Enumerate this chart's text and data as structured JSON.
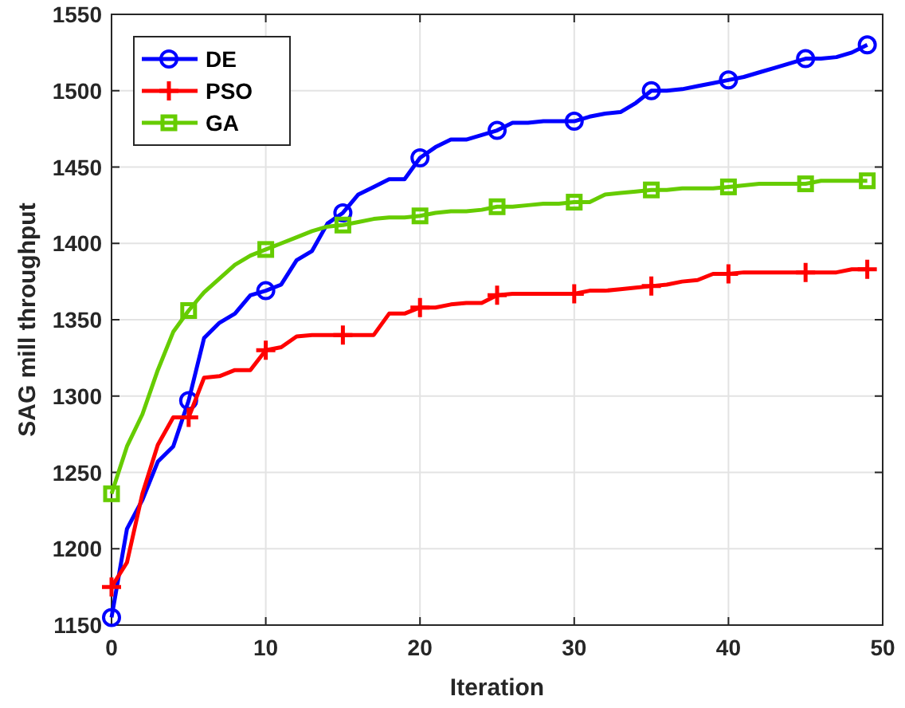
{
  "chart_data": {
    "type": "line",
    "xlabel": "Iteration",
    "ylabel": "SAG mill throughput",
    "x": [
      0,
      1,
      2,
      3,
      4,
      5,
      6,
      7,
      8,
      9,
      10,
      11,
      12,
      13,
      14,
      15,
      16,
      17,
      18,
      19,
      20,
      21,
      22,
      23,
      24,
      25,
      26,
      27,
      28,
      29,
      30,
      31,
      32,
      33,
      34,
      35,
      36,
      37,
      38,
      39,
      40,
      41,
      42,
      43,
      44,
      45,
      46,
      47,
      48,
      49
    ],
    "series": [
      {
        "name": "DE",
        "color": "#0000ff",
        "values": [
          1155,
          1213,
          1232,
          1257,
          1267,
          1297,
          1338,
          1348,
          1354,
          1366,
          1369,
          1373,
          1389,
          1395,
          1413,
          1420,
          1432,
          1437,
          1442,
          1442,
          1456,
          1463,
          1468,
          1468,
          1471,
          1474,
          1479,
          1479,
          1480,
          1480,
          1480,
          1483,
          1485,
          1486,
          1492,
          1500,
          1500,
          1501,
          1503,
          1505,
          1507,
          1509,
          1512,
          1515,
          1518,
          1521,
          1521,
          1522,
          1525,
          1530
        ]
      },
      {
        "type": "scatter",
        "color": "#0000ff",
        "marker": "circle",
        "x": [
          0,
          5,
          10,
          15,
          20,
          25,
          30,
          35,
          40,
          45,
          49
        ],
        "values": [
          1155,
          1297,
          1369,
          1420,
          1456,
          1474,
          1480,
          1500,
          1507,
          1521,
          1530
        ]
      },
      {
        "name": "PSO",
        "color": "#ff0000",
        "values": [
          1175,
          1191,
          1236,
          1268,
          1286,
          1286,
          1312,
          1313,
          1317,
          1317,
          1330,
          1332,
          1339,
          1340,
          1340,
          1340,
          1340,
          1340,
          1354,
          1354,
          1358,
          1358,
          1360,
          1361,
          1361,
          1366,
          1367,
          1367,
          1367,
          1367,
          1367,
          1369,
          1369,
          1370,
          1371,
          1372,
          1373,
          1375,
          1376,
          1380,
          1380,
          1381,
          1381,
          1381,
          1381,
          1381,
          1381,
          1381,
          1383,
          1383
        ]
      },
      {
        "type": "scatter",
        "color": "#ff0000",
        "marker": "cross",
        "x": [
          0,
          5,
          10,
          15,
          20,
          25,
          30,
          35,
          40,
          45,
          49
        ],
        "values": [
          1175,
          1286,
          1330,
          1340,
          1358,
          1366,
          1367,
          1372,
          1380,
          1381,
          1383
        ]
      },
      {
        "name": "GA",
        "color": "#66cc00",
        "values": [
          1236,
          1267,
          1288,
          1317,
          1342,
          1356,
          1368,
          1377,
          1386,
          1392,
          1396,
          1400,
          1404,
          1408,
          1411,
          1412,
          1414,
          1416,
          1417,
          1417,
          1418,
          1420,
          1421,
          1421,
          1422,
          1424,
          1424,
          1425,
          1426,
          1426,
          1427,
          1427,
          1432,
          1433,
          1434,
          1435,
          1435,
          1436,
          1436,
          1436,
          1437,
          1438,
          1439,
          1439,
          1439,
          1439,
          1441,
          1441,
          1441,
          1441
        ]
      },
      {
        "type": "scatter",
        "color": "#66cc00",
        "marker": "square",
        "x": [
          0,
          5,
          10,
          15,
          20,
          25,
          30,
          35,
          40,
          45,
          49
        ],
        "values": [
          1236,
          1356,
          1396,
          1412,
          1418,
          1424,
          1427,
          1435,
          1437,
          1439,
          1441
        ]
      }
    ],
    "xlim": [
      0,
      50
    ],
    "xticks": [
      0,
      10,
      20,
      30,
      40,
      50
    ],
    "ylim": [
      1150,
      1550
    ],
    "yticks": [
      1150,
      1200,
      1250,
      1300,
      1350,
      1400,
      1450,
      1500,
      1550
    ],
    "grid": true,
    "legend": "top left",
    "line_style": "solid"
  }
}
